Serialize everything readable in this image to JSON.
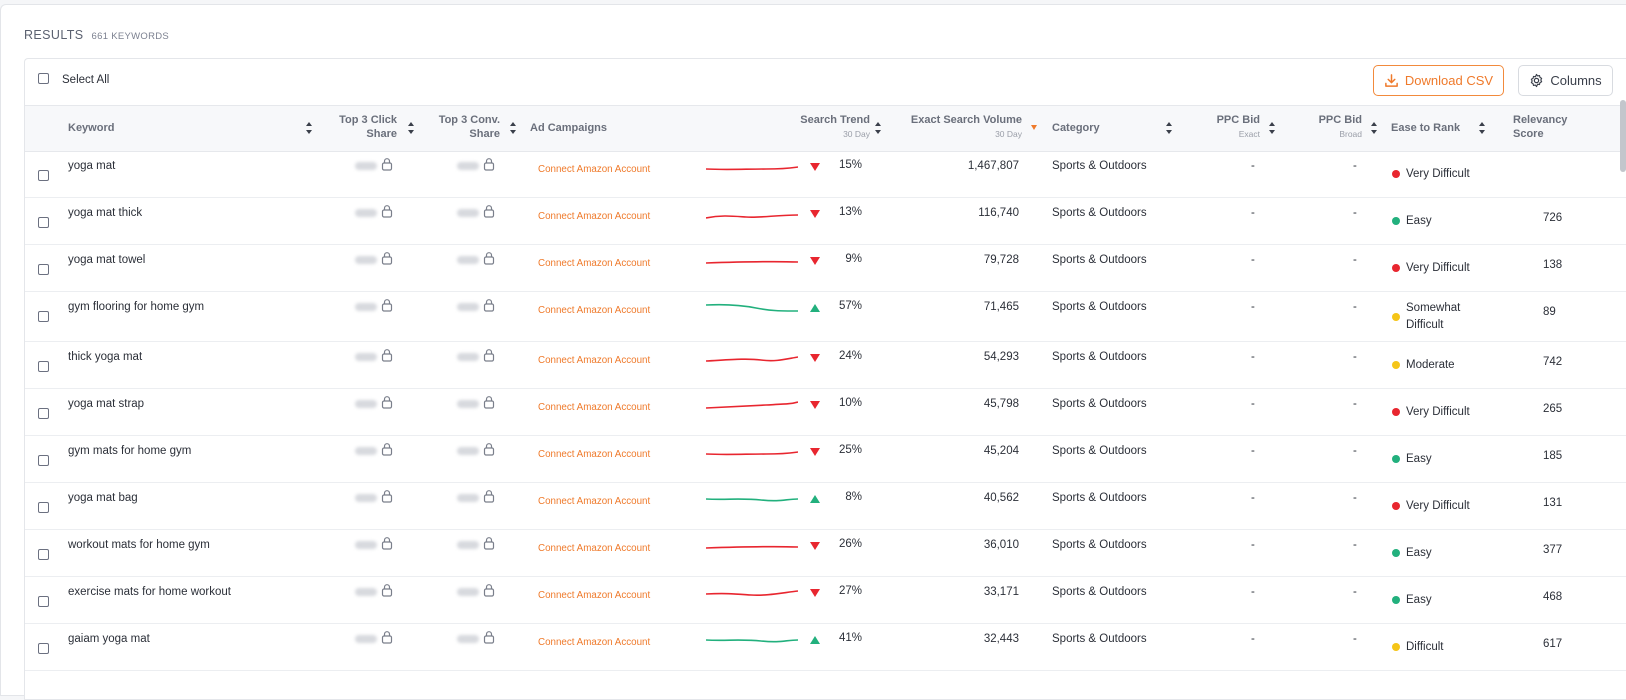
{
  "results": {
    "title": "RESULTS",
    "count": "661 KEYWORDS"
  },
  "toolbar": {
    "select_all": "Select All",
    "download_csv": "Download CSV",
    "columns": "Columns"
  },
  "columns": {
    "keyword": "Keyword",
    "top3_click": "Top 3 Click Share",
    "top3_conv": "Top 3 Conv. Share",
    "ad_campaigns": "Ad Campaigns",
    "search_trend": "Search Trend",
    "search_trend_sub": "30 Day",
    "exact_volume": "Exact Search Volume",
    "exact_volume_sub": "30 Day",
    "category": "Category",
    "ppc_exact": "PPC Bid",
    "ppc_exact_sub": "Exact",
    "ppc_broad": "PPC Bid",
    "ppc_broad_sub": "Broad",
    "ease": "Ease to Rank",
    "relevancy": "Relevancy Score"
  },
  "colors": {
    "accent": "#ef7a2b",
    "down": "#e8262f",
    "up": "#22b07d",
    "very_difficult": "#e8262f",
    "easy": "#22b07d",
    "somewhat": "#f5c518",
    "moderate": "#f5c518",
    "difficult": "#f5c518"
  },
  "rows": [
    {
      "keyword": "yoga mat",
      "connect": "Connect Amazon Account",
      "trend": "down",
      "pct": "15%",
      "volume": "1,467,807",
      "category": "Sports & Outdoors",
      "ppc_exact": "-",
      "ppc_broad": "-",
      "ease": "Very Difficult",
      "ease_color": "#e8262f",
      "relevancy": ""
    },
    {
      "keyword": "yoga mat thick",
      "connect": "Connect Amazon Account",
      "trend": "down",
      "pct": "13%",
      "volume": "116,740",
      "category": "Sports & Outdoors",
      "ppc_exact": "-",
      "ppc_broad": "-",
      "ease": "Easy",
      "ease_color": "#22b07d",
      "relevancy": "726"
    },
    {
      "keyword": "yoga mat towel",
      "connect": "Connect Amazon Account",
      "trend": "down",
      "pct": "9%",
      "volume": "79,728",
      "category": "Sports & Outdoors",
      "ppc_exact": "-",
      "ppc_broad": "-",
      "ease": "Very Difficult",
      "ease_color": "#e8262f",
      "relevancy": "138"
    },
    {
      "keyword": "gym flooring for home gym",
      "connect": "Connect Amazon Account",
      "trend": "up",
      "pct": "57%",
      "volume": "71,465",
      "category": "Sports & Outdoors",
      "ppc_exact": "-",
      "ppc_broad": "-",
      "ease": "Somewhat Difficult",
      "ease_color": "#f5c518",
      "relevancy": "89"
    },
    {
      "keyword": "thick yoga mat",
      "connect": "Connect Amazon Account",
      "trend": "down",
      "pct": "24%",
      "volume": "54,293",
      "category": "Sports & Outdoors",
      "ppc_exact": "-",
      "ppc_broad": "-",
      "ease": "Moderate",
      "ease_color": "#f5c518",
      "relevancy": "742"
    },
    {
      "keyword": "yoga mat strap",
      "connect": "Connect Amazon Account",
      "trend": "down",
      "pct": "10%",
      "volume": "45,798",
      "category": "Sports & Outdoors",
      "ppc_exact": "-",
      "ppc_broad": "-",
      "ease": "Very Difficult",
      "ease_color": "#e8262f",
      "relevancy": "265"
    },
    {
      "keyword": "gym mats for home gym",
      "connect": "Connect Amazon Account",
      "trend": "down",
      "pct": "25%",
      "volume": "45,204",
      "category": "Sports & Outdoors",
      "ppc_exact": "-",
      "ppc_broad": "-",
      "ease": "Easy",
      "ease_color": "#22b07d",
      "relevancy": "185"
    },
    {
      "keyword": "yoga mat bag",
      "connect": "Connect Amazon Account",
      "trend": "up",
      "pct": "8%",
      "volume": "40,562",
      "category": "Sports & Outdoors",
      "ppc_exact": "-",
      "ppc_broad": "-",
      "ease": "Very Difficult",
      "ease_color": "#e8262f",
      "relevancy": "131"
    },
    {
      "keyword": "workout mats for home gym",
      "connect": "Connect Amazon Account",
      "trend": "down",
      "pct": "26%",
      "volume": "36,010",
      "category": "Sports & Outdoors",
      "ppc_exact": "-",
      "ppc_broad": "-",
      "ease": "Easy",
      "ease_color": "#22b07d",
      "relevancy": "377"
    },
    {
      "keyword": "exercise mats for home workout",
      "connect": "Connect Amazon Account",
      "trend": "down",
      "pct": "27%",
      "volume": "33,171",
      "category": "Sports & Outdoors",
      "ppc_exact": "-",
      "ppc_broad": "-",
      "ease": "Easy",
      "ease_color": "#22b07d",
      "relevancy": "468"
    },
    {
      "keyword": "gaiam yoga mat",
      "connect": "Connect Amazon Account",
      "trend": "up",
      "pct": "41%",
      "volume": "32,443",
      "category": "Sports & Outdoors",
      "ppc_exact": "-",
      "ppc_broad": "-",
      "ease": "Difficult",
      "ease_color": "#f5c518",
      "relevancy": "617"
    }
  ]
}
